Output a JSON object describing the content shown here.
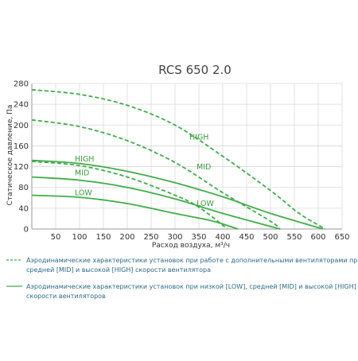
{
  "chart_data": {
    "type": "line",
    "title": "RCS 650 2.0",
    "xlabel": "Расход воздуха, м³/ч",
    "ylabel": "Статическое давление, Па",
    "xlim": [
      0,
      650
    ],
    "ylim": [
      0,
      280
    ],
    "xticks": [
      0,
      50,
      100,
      150,
      200,
      250,
      300,
      350,
      400,
      450,
      500,
      550,
      600,
      650
    ],
    "yticks": [
      0,
      40,
      80,
      120,
      160,
      200,
      240,
      280
    ],
    "grid": true,
    "line_color": "#3fae49",
    "series": [
      {
        "name": "LOW",
        "style": "solid",
        "points": [
          [
            0,
            65
          ],
          [
            100,
            61
          ],
          [
            200,
            49
          ],
          [
            300,
            30
          ],
          [
            380,
            15
          ],
          [
            432,
            0
          ]
        ]
      },
      {
        "name": "MID",
        "style": "solid",
        "points": [
          [
            0,
            100
          ],
          [
            100,
            94
          ],
          [
            200,
            80
          ],
          [
            300,
            58
          ],
          [
            400,
            30
          ],
          [
            520,
            0
          ]
        ]
      },
      {
        "name": "HIGH",
        "style": "solid",
        "points": [
          [
            0,
            132
          ],
          [
            100,
            126
          ],
          [
            200,
            111
          ],
          [
            300,
            89
          ],
          [
            400,
            62
          ],
          [
            500,
            30
          ],
          [
            610,
            0
          ]
        ]
      },
      {
        "name": "LOW",
        "style": "dashed",
        "points": [
          [
            0,
            130
          ],
          [
            100,
            122
          ],
          [
            200,
            100
          ],
          [
            300,
            65
          ],
          [
            350,
            42
          ],
          [
            410,
            0
          ]
        ]
      },
      {
        "name": "MID",
        "style": "dashed",
        "points": [
          [
            0,
            210
          ],
          [
            100,
            197
          ],
          [
            200,
            170
          ],
          [
            300,
            128
          ],
          [
            400,
            70
          ],
          [
            500,
            15
          ],
          [
            520,
            0
          ]
        ]
      },
      {
        "name": "HIGH",
        "style": "dashed",
        "points": [
          [
            0,
            268
          ],
          [
            100,
            259
          ],
          [
            200,
            238
          ],
          [
            300,
            200
          ],
          [
            400,
            140
          ],
          [
            500,
            74
          ],
          [
            560,
            30
          ],
          [
            615,
            0
          ]
        ]
      }
    ],
    "annotations": [
      {
        "text": "HIGH",
        "x": 90,
        "y": 130
      },
      {
        "text": "MID",
        "x": 90,
        "y": 103
      },
      {
        "text": "LOW",
        "x": 90,
        "y": 65
      },
      {
        "text": "HIGH",
        "x": 330,
        "y": 172
      },
      {
        "text": "MID",
        "x": 345,
        "y": 115
      },
      {
        "text": "LOW",
        "x": 345,
        "y": 44
      }
    ]
  },
  "legend": {
    "dashed_text": [
      "Аэродинамические характеристики установок при работе с дополнительными вентиляторами при низкой [LOW],",
      "средней [MID] и высокой [HIGH] скорости вентилятора"
    ],
    "solid_text": [
      "Аэродинамические характеристики установок при низкой [LOW], средней [MID] и высокой [HIGH]",
      "скорости вентиляторов"
    ]
  }
}
